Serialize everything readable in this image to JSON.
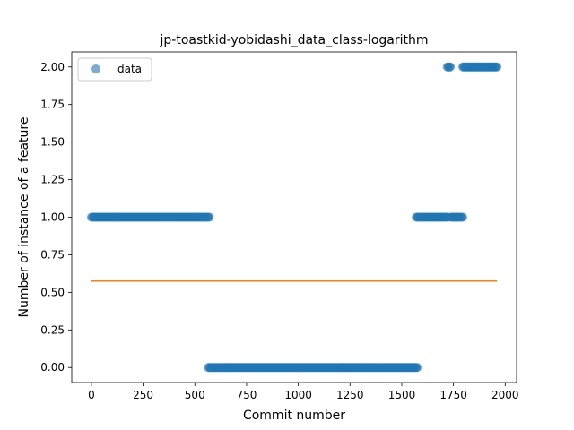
{
  "chart_data": {
    "type": "scatter",
    "title": "jp-toastkid-yobidashi_data_class-logarithm",
    "xlabel": "Commit number",
    "ylabel": "Number of instance of a feature",
    "xlim": [
      -95,
      2055
    ],
    "ylim": [
      -0.1,
      2.1
    ],
    "xticks": [
      0,
      250,
      500,
      750,
      1000,
      1250,
      1500,
      1750,
      2000
    ],
    "yticks": [
      "0.00",
      "0.25",
      "0.50",
      "0.75",
      "1.00",
      "1.25",
      "1.50",
      "1.75",
      "2.00"
    ],
    "grid": false,
    "legend": {
      "placement": "top-left",
      "entries": [
        "data"
      ]
    },
    "series": [
      {
        "name": "data",
        "kind": "points",
        "color": "#1f77b4",
        "segments": [
          {
            "x_start": 0,
            "x_end": 570,
            "y": 1
          },
          {
            "x_start": 565,
            "x_end": 1575,
            "y": 0
          },
          {
            "x_start": 1570,
            "x_end": 1720,
            "y": 1
          },
          {
            "x_start": 1720,
            "x_end": 1735,
            "y": 2
          },
          {
            "x_start": 1735,
            "x_end": 1795,
            "y": 1
          },
          {
            "x_start": 1795,
            "x_end": 1960,
            "y": 2
          }
        ]
      },
      {
        "kind": "line",
        "color": "#ff7f0e",
        "x": [
          0,
          1960
        ],
        "y": [
          0.575,
          0.575
        ]
      }
    ]
  }
}
